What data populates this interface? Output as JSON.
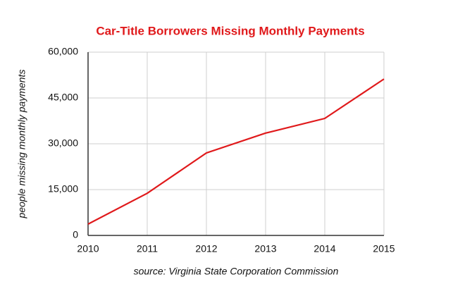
{
  "chart_data": {
    "type": "line",
    "title": "Car-Title Borrowers Missing Monthly Payments",
    "ylabel": "people missing monthly payments",
    "source": "source: Virginia State Corporation Commission",
    "x": [
      2010,
      2011,
      2012,
      2013,
      2014,
      2015
    ],
    "series": [
      {
        "name": "Borrowers missing monthly payments",
        "color": "#e0191b",
        "values": [
          3700,
          13800,
          27000,
          33500,
          38300,
          51200
        ]
      }
    ],
    "xlim": [
      2010,
      2015
    ],
    "xticks": [
      2010,
      2011,
      2012,
      2013,
      2014,
      2015
    ],
    "ylim": [
      0,
      60000
    ],
    "yticks": [
      0,
      {
        "value": 15000,
        "label": "15,000"
      },
      {
        "value": 30000,
        "label": "30,000"
      },
      {
        "value": 45000,
        "label": "45,000"
      },
      {
        "value": 60000,
        "label": "60,000"
      }
    ],
    "grid": true
  }
}
